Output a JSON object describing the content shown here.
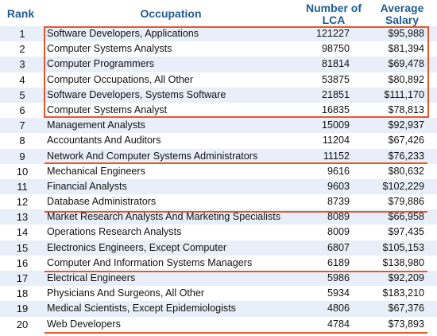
{
  "headers": {
    "rank": "Rank",
    "occupation": "Occupation",
    "lca_line1": "Number of",
    "lca_line2": "LCA",
    "salary_line1": "Average",
    "salary_line2": "Salary"
  },
  "highlight_color": "#e4572e",
  "rows": [
    {
      "rank": "1",
      "occupation": "Software Developers, Applications",
      "lca": "121227",
      "salary": "$95,988"
    },
    {
      "rank": "2",
      "occupation": "Computer Systems Analysts",
      "lca": "98750",
      "salary": "$81,394"
    },
    {
      "rank": "3",
      "occupation": "Computer Programmers",
      "lca": "81814",
      "salary": "$69,478"
    },
    {
      "rank": "4",
      "occupation": "Computer Occupations, All Other",
      "lca": "53875",
      "salary": "$80,892"
    },
    {
      "rank": "5",
      "occupation": "Software Developers, Systems Software",
      "lca": "21851",
      "salary": "$111,170"
    },
    {
      "rank": "6",
      "occupation": "Computer Systems Analyst",
      "lca": "16835",
      "salary": "$78,813"
    },
    {
      "rank": "7",
      "occupation": "Management Analysts",
      "lca": "15009",
      "salary": "$92,937"
    },
    {
      "rank": "8",
      "occupation": "Accountants And Auditors",
      "lca": "11204",
      "salary": "$67,426"
    },
    {
      "rank": "9",
      "occupation": "Network And Computer Systems Administrators",
      "lca": "11152",
      "salary": "$76,233"
    },
    {
      "rank": "10",
      "occupation": "Mechanical Engineers",
      "lca": "9616",
      "salary": "$80,632"
    },
    {
      "rank": "11",
      "occupation": "Financial Analysts",
      "lca": "9603",
      "salary": "$102,229"
    },
    {
      "rank": "12",
      "occupation": "Database Administrators",
      "lca": "8739",
      "salary": "$79,886"
    },
    {
      "rank": "13",
      "occupation": "Market Research Analysts And Marketing Specialists",
      "lca": "8089",
      "salary": "$66,958"
    },
    {
      "rank": "14",
      "occupation": "Operations Research Analysts",
      "lca": "8009",
      "salary": "$97,435"
    },
    {
      "rank": "15",
      "occupation": "Electronics Engineers, Except Computer",
      "lca": "6807",
      "salary": "$105,153"
    },
    {
      "rank": "16",
      "occupation": "Computer And Information Systems Managers",
      "lca": "6189",
      "salary": "$138,980"
    },
    {
      "rank": "17",
      "occupation": "Electrical Engineers",
      "lca": "5986",
      "salary": "$92,209"
    },
    {
      "rank": "18",
      "occupation": "Physicians And Surgeons, All Other",
      "lca": "5934",
      "salary": "$183,210"
    },
    {
      "rank": "19",
      "occupation": "Medical Scientists, Except Epidemiologists",
      "lca": "4806",
      "salary": "$67,376"
    },
    {
      "rank": "20",
      "occupation": "Web Developers",
      "lca": "4784",
      "salary": "$73,893"
    }
  ]
}
